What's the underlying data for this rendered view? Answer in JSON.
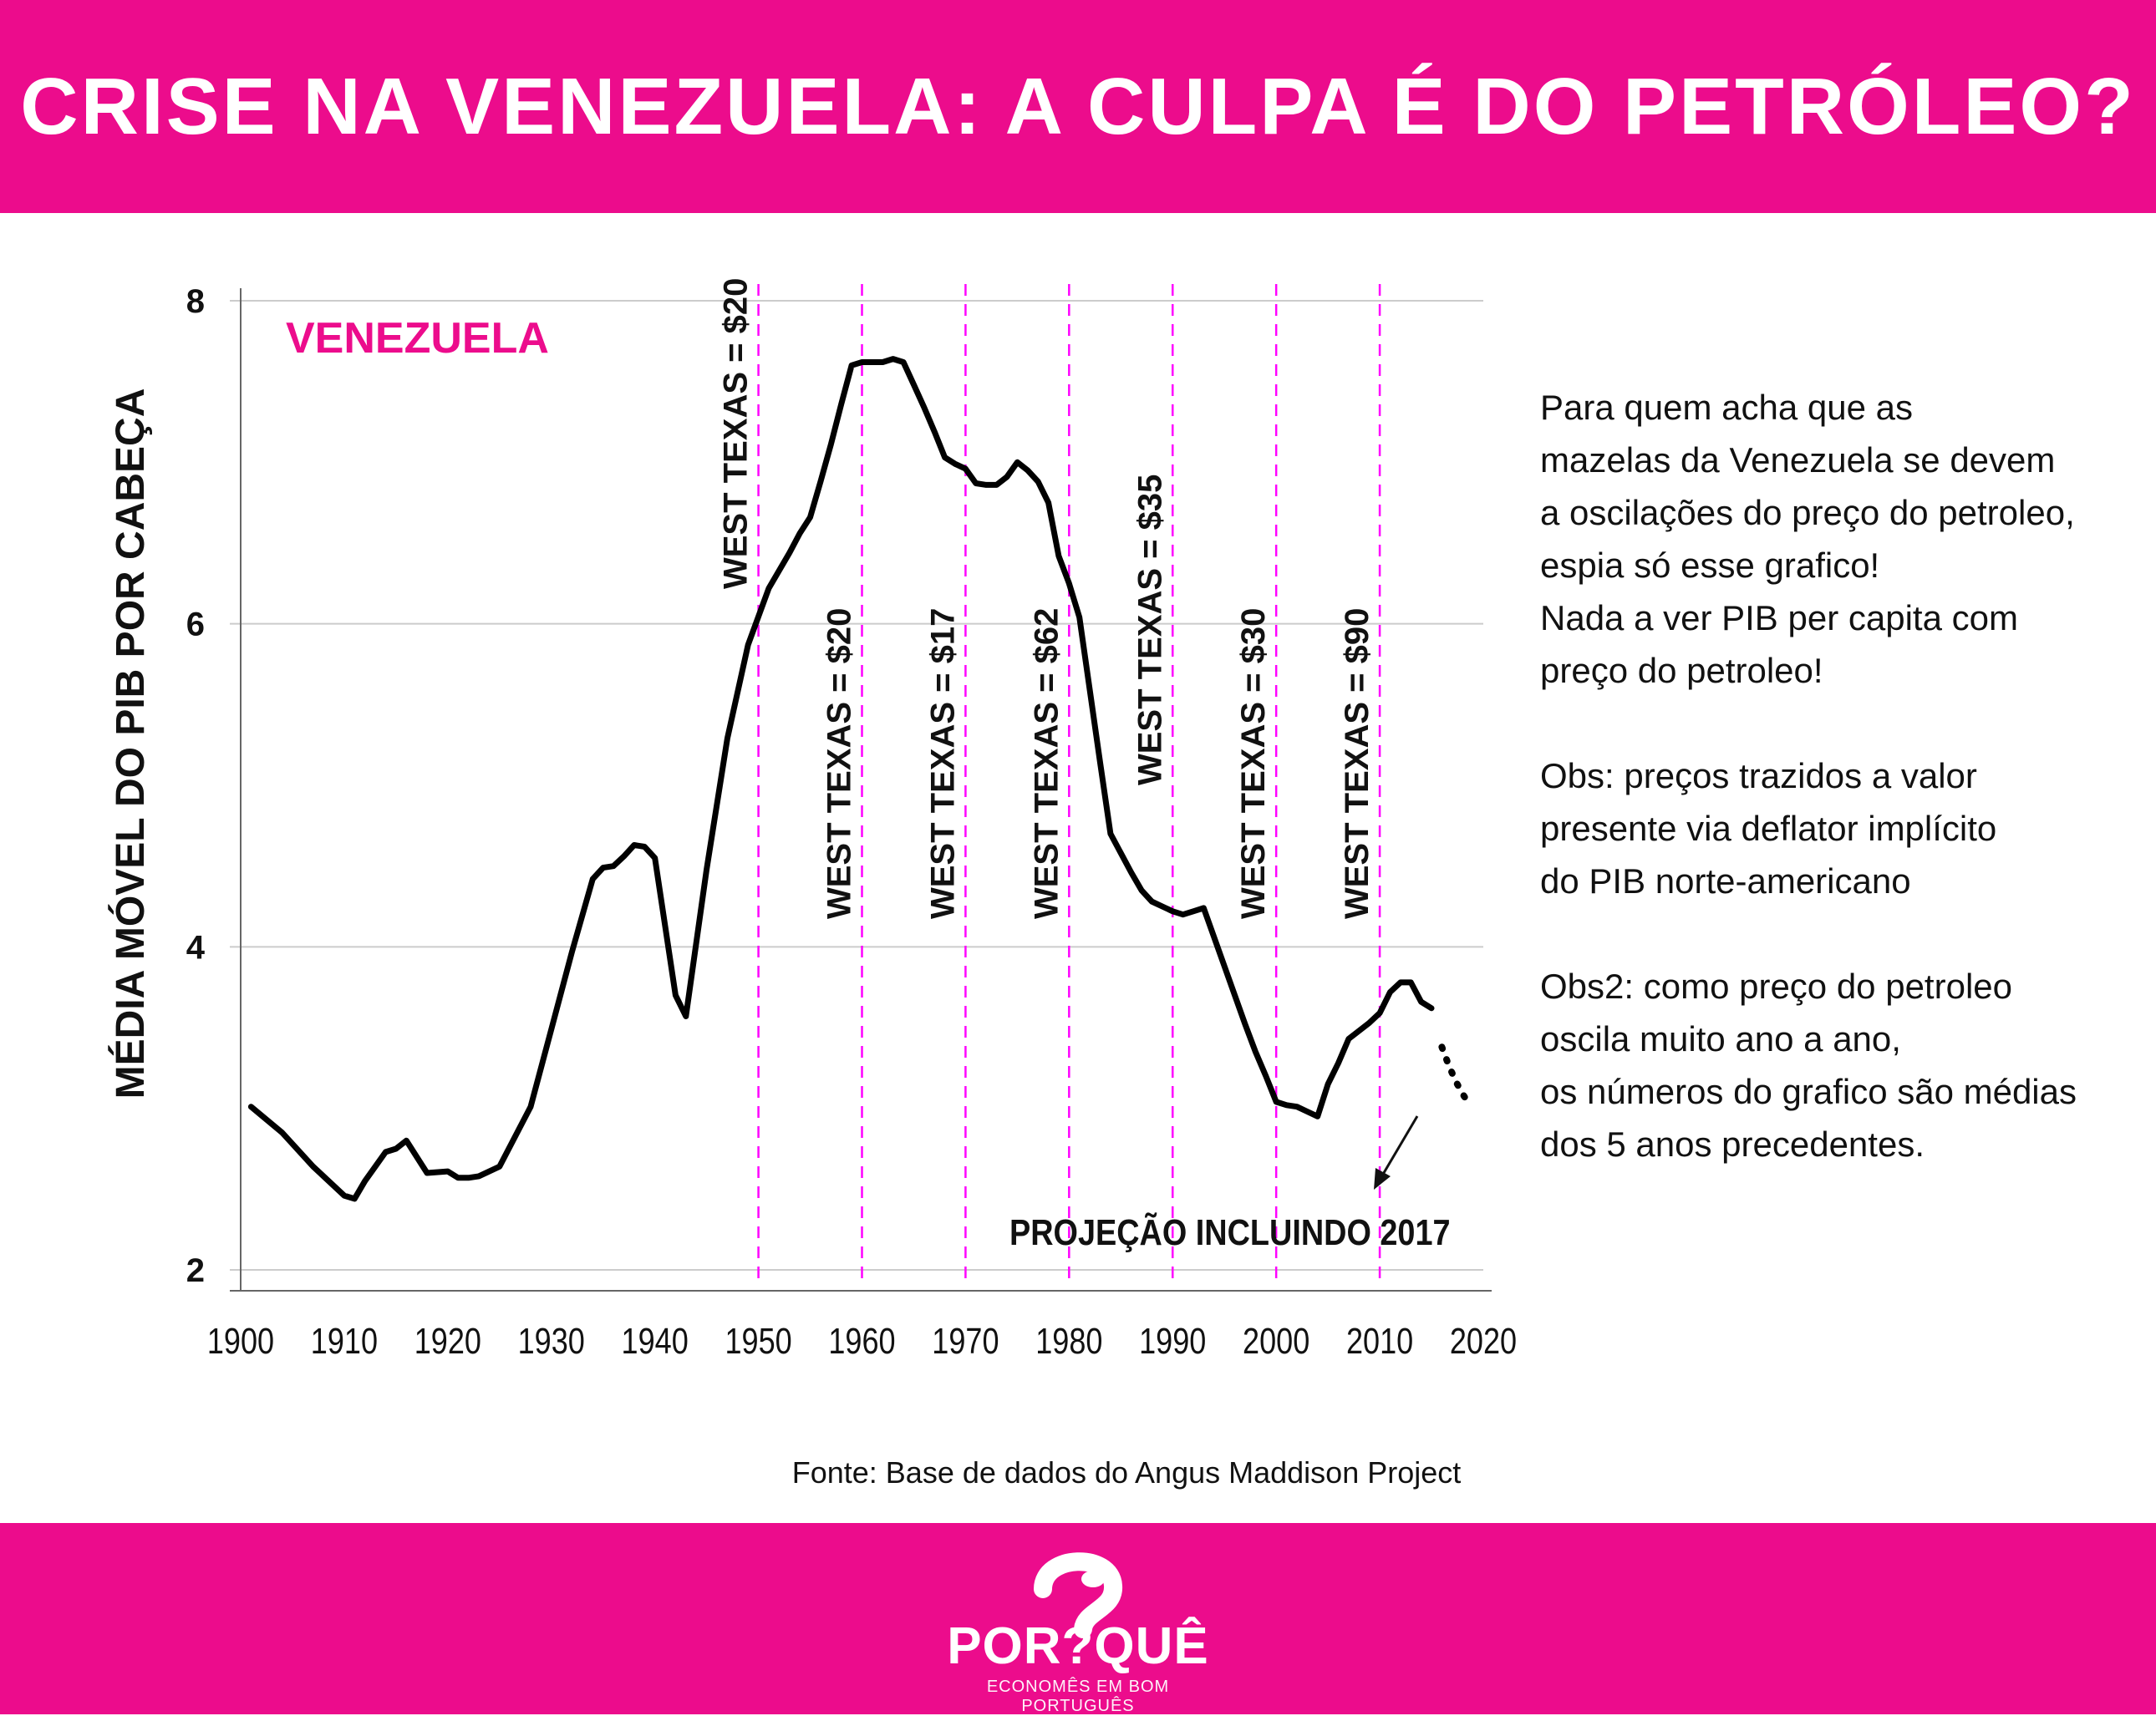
{
  "header": {
    "title": "CRISE NA VENEZUELA: A CULPA É DO PETRÓLEO?"
  },
  "colors": {
    "brand": "#ec0c8c",
    "line": "#000000",
    "marker": "#ff00ff",
    "grid": "#cccccc"
  },
  "chart_data": {
    "type": "line",
    "title": "",
    "series_label": "VENEZUELA",
    "ylabel": "MÉDIA MÓVEL DO PIB POR CABEÇA",
    "xlabel": "",
    "xlim": [
      1900,
      2020
    ],
    "ylim": [
      2,
      8
    ],
    "x_ticks": [
      "1900",
      "1910",
      "1920",
      "1930",
      "1940",
      "1950",
      "1960",
      "1970",
      "1980",
      "1990",
      "2000",
      "2010",
      "2020"
    ],
    "y_ticks": [
      "2",
      "4",
      "6",
      "8"
    ],
    "grid": "horizontal",
    "series": [
      {
        "x": [
          1901,
          1904,
          1907,
          1910,
          1911,
          1912,
          1914,
          1915,
          1916,
          1918,
          1920,
          1921,
          1922,
          1923,
          1925,
          1928,
          1930,
          1932,
          1934,
          1935,
          1936,
          1937,
          1938,
          1939,
          1940,
          1942,
          1943,
          1945,
          1947,
          1949,
          1951,
          1953,
          1954,
          1955,
          1956,
          1957,
          1958,
          1959,
          1960,
          1961,
          1962,
          1963,
          1964,
          1965,
          1966,
          1967,
          1968,
          1969,
          1970,
          1971,
          1972,
          1973,
          1974,
          1975,
          1976,
          1977,
          1978,
          1979,
          1980,
          1981,
          1982,
          1983,
          1984,
          1985,
          1986,
          1987,
          1988,
          1989,
          1990,
          1991,
          1992,
          1993,
          1994,
          1995,
          1996,
          1997,
          1998,
          1999,
          2000,
          2001,
          2002,
          2003,
          2004,
          2005,
          2006,
          2007,
          2008,
          2009,
          2010,
          2011,
          2012,
          2013,
          2014,
          2015
        ],
        "y": [
          3.01,
          2.85,
          2.64,
          2.46,
          2.44,
          2.55,
          2.73,
          2.75,
          2.8,
          2.6,
          2.61,
          2.57,
          2.57,
          2.58,
          2.64,
          3.01,
          3.49,
          3.97,
          4.42,
          4.49,
          4.5,
          4.56,
          4.63,
          4.62,
          4.55,
          3.7,
          3.57,
          4.48,
          5.29,
          5.87,
          6.22,
          6.44,
          6.56,
          6.66,
          6.88,
          7.11,
          7.36,
          7.6,
          7.62,
          7.62,
          7.62,
          7.64,
          7.62,
          7.48,
          7.34,
          7.19,
          7.03,
          6.99,
          6.96,
          6.87,
          6.86,
          6.86,
          6.91,
          7.0,
          6.95,
          6.88,
          6.75,
          6.42,
          6.25,
          6.04,
          5.59,
          5.14,
          4.7,
          4.58,
          4.46,
          4.35,
          4.28,
          4.25,
          4.22,
          4.2,
          4.22,
          4.24,
          4.06,
          3.88,
          3.7,
          3.52,
          3.35,
          3.2,
          3.04,
          3.02,
          3.01,
          2.98,
          2.95,
          3.15,
          3.28,
          3.43,
          3.48,
          3.53,
          3.59,
          3.72,
          3.78,
          3.78,
          3.66,
          3.62
        ]
      },
      {
        "style": "dotted",
        "x": [
          2016,
          2016.7,
          2017.4,
          2018,
          2018.6
        ],
        "y": [
          3.38,
          3.26,
          3.16,
          3.09,
          3.03
        ]
      }
    ],
    "markers": [
      {
        "year": 1950,
        "label": "WEST TEXAS = $20",
        "placement": "top"
      },
      {
        "year": 1960,
        "label": "WEST TEXAS = $20",
        "placement": "bottom"
      },
      {
        "year": 1970,
        "label": "WEST TEXAS = $17",
        "placement": "bottom"
      },
      {
        "year": 1980,
        "label": "WEST TEXAS = $62",
        "placement": "bottom"
      },
      {
        "year": 1990,
        "label": "WEST TEXAS = $35",
        "placement": "middle"
      },
      {
        "year": 2000,
        "label": "WEST TEXAS = $30",
        "placement": "bottom"
      },
      {
        "year": 2010,
        "label": "WEST TEXAS = $90",
        "placement": "bottom"
      }
    ],
    "annotation": "PROJEÇÃO INCLUINDO 2017"
  },
  "notes": [
    [
      "Para quem acha que as",
      "mazelas da Venezuela se devem",
      "a oscilações do preço do petroleo,",
      "espia só esse grafico!",
      "Nada a ver PIB per capita com",
      "preço do petroleo!"
    ],
    [
      "Obs: preços trazidos a valor",
      "presente via deflator implícito",
      "do PIB norte-americano"
    ],
    [
      "Obs2: como preço do petroleo",
      "oscila muito ano a ano,",
      "os números do grafico são médias",
      "dos 5 anos precedentes."
    ]
  ],
  "source": "Fonte: Base de dados do Angus Maddison Project",
  "logo": {
    "word": "POR?QUÊ",
    "tagline": "ECONOMÊS EM BOM PORTUGUÊS"
  }
}
